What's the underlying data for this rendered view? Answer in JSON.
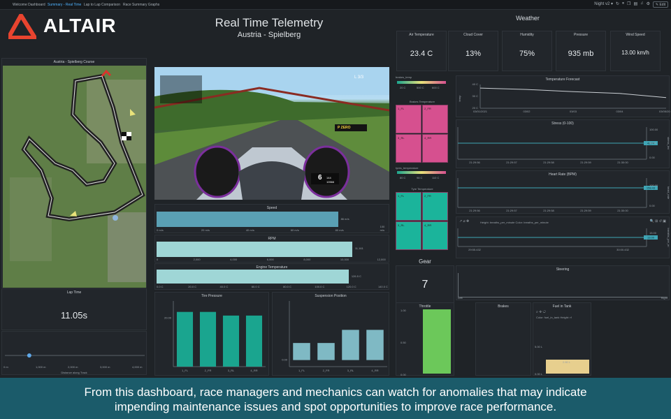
{
  "nav": {
    "tabs": [
      "Welcome Dashboard",
      "Summary - Real Time",
      "Lap to Lap Comparison",
      "Race Summary Graphs"
    ],
    "active_tab": "Summary - Real Time",
    "night_label": "Night v2 ▾",
    "edit_label": "✎ Edit"
  },
  "brand": {
    "logo_text": "ALTAIR",
    "logo_color": "#e8442f"
  },
  "header": {
    "title": "Real Time Telemetry",
    "subtitle": "Austria - Spielberg"
  },
  "course": {
    "title": "Austria - Spielberg Course"
  },
  "lap_time": {
    "title": "Lap Time",
    "value": "11.05s"
  },
  "distance": {
    "xlabel": "Distance along Track",
    "ticks": [
      "0 m",
      "1,000 m",
      "2,000 m",
      "3,000 m",
      "4,000 m"
    ],
    "marker_m": 750,
    "max_m": 4300
  },
  "sim_view": {
    "lap_label": "L 3/3",
    "gear_num": "6",
    "speed_readout": "144",
    "rpm_readout": "10566",
    "sign": "P ZERO"
  },
  "speed": {
    "title": "Speed",
    "value_label": "86 m/s",
    "ticks": [
      "0 m/s",
      "20 m/s",
      "40 m/s",
      "60 m/s",
      "80 m/s",
      "100 m/s"
    ],
    "value": 86,
    "max": 108,
    "color": "#5aa0b4"
  },
  "rpm": {
    "title": "RPM",
    "value_label": "11,161",
    "ticks": [
      "0",
      "2,000",
      "4,000",
      "6,000",
      "8,000",
      "10,000",
      "12,000"
    ],
    "value": 11161,
    "max": 13000,
    "color": "#9fd6d6"
  },
  "engine_temp": {
    "title": "Engine Temperature",
    "value_label": "126.5 C",
    "ticks": [
      "0.0 C",
      "20.0 C",
      "40.0 C",
      "60.0 C",
      "80.0 C",
      "100.0 C",
      "120.0 C",
      "140.0 C"
    ],
    "value": 126.5,
    "max": 150,
    "color": "#9fd6d6"
  },
  "tire_pressure": {
    "title": "Tire Pressure",
    "chart_data": {
      "type": "bar",
      "categories": [
        "1_FL",
        "2_FR",
        "3_RL",
        "4_RR"
      ],
      "values": [
        22.5,
        22.5,
        21.0,
        21.0
      ],
      "ylim": [
        0,
        27
      ],
      "yticks": [
        "20.00"
      ],
      "color": "#1aa58f"
    }
  },
  "suspension": {
    "title": "Suspension Position",
    "chart_data": {
      "type": "bar",
      "categories": [
        "1_FL",
        "2_FR",
        "3_RL",
        "4_RR"
      ],
      "values": [
        0.013,
        0.013,
        0.023,
        0.023
      ],
      "ylim": [
        -0.005,
        0.045
      ],
      "yticks": [
        "0.00"
      ],
      "color": "#7fb9c4"
    }
  },
  "weather": {
    "title": "Weather",
    "stats": [
      {
        "label": "Air Temperature",
        "value": "23.4 C"
      },
      {
        "label": "Cloud Cover",
        "value": "13%"
      },
      {
        "label": "Humidity",
        "value": "75%"
      },
      {
        "label": "Pressure",
        "value": "935 mb"
      },
      {
        "label": "Wind Speed",
        "value": "13.00 km/h"
      }
    ]
  },
  "brakes_temp": {
    "legend_title": "brakes_temp",
    "title": "Brakes Temperature",
    "scale": [
      "20 C",
      "500 C",
      "600 C"
    ],
    "cells": [
      "1_FL",
      "2_FR",
      "3_RL",
      "4_RR"
    ],
    "color": "#d6508f"
  },
  "tyres_temp": {
    "legend_title": "tyres_temperature",
    "title": "Tyre Temperature",
    "scale": [
      "80 C",
      "98 C",
      "110 C"
    ],
    "cells": [
      "1_FL",
      "2_FR",
      "3_RL",
      "4_RR"
    ],
    "color": "#1bb49b"
  },
  "temp_forecast": {
    "title": "Temperature Forecast",
    "ylabel": "temp",
    "chart_data": {
      "type": "line",
      "x": [
        "03/01/2021",
        "03/02",
        "03/03",
        "03/04",
        "03/05/2021"
      ],
      "values": [
        37,
        35.8,
        34,
        32.5,
        29
      ],
      "ylim": [
        20,
        40
      ],
      "yticks": [
        "40 C",
        "30 C",
        "20 C"
      ]
    }
  },
  "stress": {
    "title": "Stress (0-100)",
    "ylabel": "stress_lev",
    "value_label": "42.74",
    "yticks": [
      "100.00",
      "50.00",
      "0.00"
    ],
    "xticks": [
      "21:29:56",
      "21:29:57",
      "21:29:58",
      "21:29:59",
      "21:30:00"
    ]
  },
  "heart_rate": {
    "title": "Heart Rate (BPM)",
    "ylabel": "heart_rate",
    "value_label": "158.43",
    "yticks": [
      "100.00",
      "0.00"
    ],
    "xticks": [
      "21:29:56",
      "21:29:57",
      "21:29:58",
      "21:29:59",
      "21:30:00"
    ]
  },
  "breaths": {
    "legend": "Height: breaths_per_minute  Color: breaths_per_minute",
    "ylabel": "breaths_per_m",
    "value_label": "13.00",
    "ytick": "15.00",
    "xticks": [
      "29:55.432",
      "",
      "",
      "",
      "30:00.432"
    ]
  },
  "gear": {
    "title": "Gear",
    "value": "7"
  },
  "steering": {
    "title": "Steering",
    "left": "Left",
    "right": "Right",
    "value": 0.52
  },
  "throttle": {
    "title": "Throttle",
    "yticks": [
      "1.00",
      "0.50",
      "0.00"
    ],
    "value": 1.0,
    "color": "#6cc85a"
  },
  "brakes": {
    "title": "Brakes",
    "value": 0.0
  },
  "fuel": {
    "title": "Fuel in Tank",
    "legend": "Color: fuel_in_tank  Height: rf",
    "value_label": "2.80 L",
    "ytick": "5.00 L",
    "ytick0": "0.00 L",
    "value": 0.28,
    "color": "#e7cf8e"
  },
  "caption": {
    "line1": "From this dashboard, race managers and mechanics can watch for anomalies that may indicate",
    "line2": "impending maintenance issues and spot opportunities to improve race performance."
  }
}
